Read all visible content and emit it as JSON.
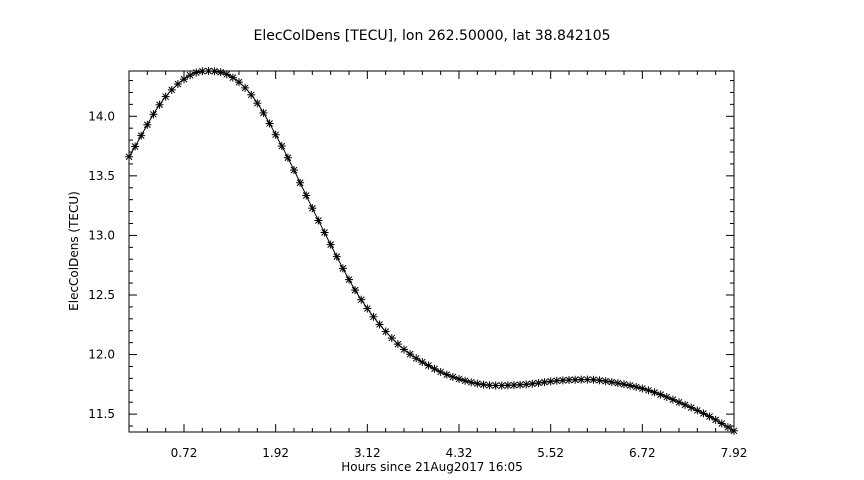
{
  "chart_data": {
    "type": "line",
    "title": "ElecColDens [TECU], lon 262.50000, lat 38.842105",
    "xlabel": "Hours since 21Aug2017 16:05",
    "ylabel": "ElecColDens (TECU)",
    "xlim": [
      0,
      7.92
    ],
    "ylim": [
      11.35,
      14.38
    ],
    "xticks": [
      0.72,
      1.92,
      3.12,
      4.32,
      5.52,
      6.72,
      7.92
    ],
    "xtick_labels": [
      "0.72",
      "1.92",
      "3.12",
      "4.32",
      "5.52",
      "6.72",
      "7.92"
    ],
    "yticks": [
      11.5,
      12.0,
      12.5,
      13.0,
      13.5,
      14.0
    ],
    "ytick_labels": [
      "11.5",
      "12.0",
      "12.5",
      "13.0",
      "13.5",
      "14.0"
    ],
    "marker": "asterisk",
    "grid": false,
    "series": [
      {
        "color": "#000000",
        "x": [
          0.0,
          0.5,
          1.0,
          1.25,
          1.6,
          2.0,
          2.5,
          3.0,
          3.5,
          4.0,
          4.4,
          4.8,
          5.2,
          5.6,
          6.0,
          6.4,
          6.8,
          7.2,
          7.6,
          7.92
        ],
        "y": [
          13.66,
          14.18,
          14.38,
          14.36,
          14.18,
          13.75,
          13.1,
          12.5,
          12.1,
          11.88,
          11.78,
          11.74,
          11.75,
          11.78,
          11.79,
          11.76,
          11.7,
          11.6,
          11.48,
          11.36
        ]
      }
    ]
  }
}
